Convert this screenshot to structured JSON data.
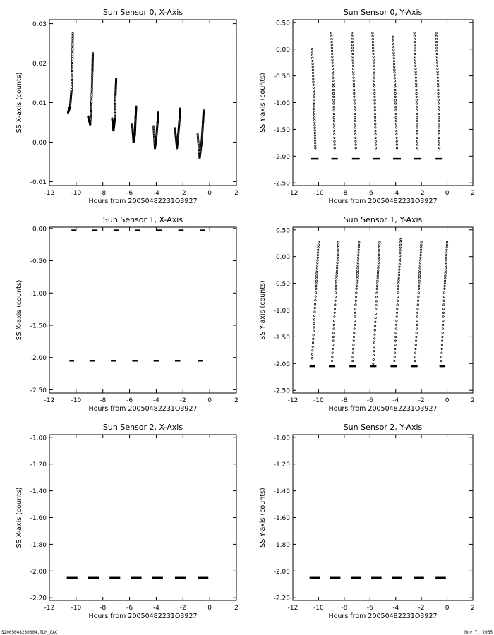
{
  "footer": {
    "left": "S2005048230304.TLM_GAC",
    "right": "Nov 7, 2005"
  },
  "chart_data": [
    {
      "type": "scatter",
      "title": "Sun Sensor 0, X-Axis",
      "xlabel": "Hours from 20050482231O3927",
      "ylabel": "SS X-axis (counts)",
      "xlim": [
        -12,
        2
      ],
      "ylim": [
        -0.011,
        0.031
      ],
      "xticks": [
        -12,
        -10,
        -8,
        -6,
        -4,
        -2,
        0,
        2
      ],
      "xtick_labels": [
        "-12",
        "-10",
        "-8",
        "-6",
        "-4",
        "-2",
        "0",
        "2"
      ],
      "yticks": [
        -0.01,
        0.0,
        0.01,
        0.02,
        0.03
      ],
      "ytick_labels": [
        "-0.01",
        "0.00",
        "0.01",
        "0.02",
        "0.03"
      ],
      "segments": [
        {
          "x": [
            -10.6,
            -10.45,
            -10.35,
            -10.28,
            -10.25
          ],
          "y": [
            0.0075,
            0.009,
            0.013,
            0.02,
            0.0275
          ]
        },
        {
          "x": [
            -9.1,
            -8.95,
            -8.85,
            -8.78,
            -8.75
          ],
          "y": [
            0.0065,
            0.0045,
            0.01,
            0.018,
            0.0225
          ]
        },
        {
          "x": [
            -7.3,
            -7.2,
            -7.1,
            -7.05,
            -7.0
          ],
          "y": [
            0.006,
            0.003,
            0.006,
            0.012,
            0.016
          ]
        },
        {
          "x": [
            -5.8,
            -5.7,
            -5.6,
            -5.55,
            -5.5
          ],
          "y": [
            0.0045,
            0.0,
            0.002,
            0.006,
            0.009
          ]
        },
        {
          "x": [
            -4.2,
            -4.1,
            -4.0,
            -3.9,
            -3.85
          ],
          "y": [
            0.004,
            -0.0015,
            0.001,
            0.005,
            0.0075
          ]
        },
        {
          "x": [
            -2.6,
            -2.45,
            -2.35,
            -2.25,
            -2.2
          ],
          "y": [
            0.0035,
            -0.0015,
            0.002,
            0.006,
            0.0085
          ]
        },
        {
          "x": [
            -0.9,
            -0.75,
            -0.6,
            -0.5,
            -0.45
          ],
          "y": [
            0.002,
            -0.004,
            0.0,
            0.005,
            0.008
          ]
        }
      ],
      "flat": null
    },
    {
      "type": "scatter",
      "title": "Sun Sensor 0, Y-Axis",
      "xlabel": "Hours from 20050482231O3927",
      "ylabel": "SS Y-axis (counts)",
      "xlim": [
        -12,
        2
      ],
      "ylim": [
        -2.55,
        0.55
      ],
      "xticks": [
        -12,
        -10,
        -8,
        -6,
        -4,
        -2,
        0,
        2
      ],
      "xtick_labels": [
        "-12",
        "-10",
        "-8",
        "-6",
        "-4",
        "-2",
        "0",
        "2"
      ],
      "yticks": [
        -2.5,
        -2.0,
        -1.5,
        -1.0,
        -0.5,
        0.0,
        0.5
      ],
      "ytick_labels": [
        "-2.50",
        "-2.00",
        "-1.50",
        "-1.00",
        "-0.50",
        "0.00",
        "0.50"
      ],
      "segments": [
        {
          "x": [
            -10.5,
            -10.35,
            -10.25
          ],
          "y": [
            0.0,
            -1.0,
            -1.85
          ]
        },
        {
          "x": [
            -9.0,
            -8.85,
            -8.75
          ],
          "y": [
            0.3,
            -0.7,
            -1.85
          ]
        },
        {
          "x": [
            -7.4,
            -7.25,
            -7.1
          ],
          "y": [
            0.3,
            -0.7,
            -1.85
          ]
        },
        {
          "x": [
            -5.8,
            -5.65,
            -5.55
          ],
          "y": [
            0.3,
            -0.7,
            -1.85
          ]
        },
        {
          "x": [
            -4.2,
            -4.05,
            -3.9
          ],
          "y": [
            0.25,
            -0.7,
            -1.85
          ]
        },
        {
          "x": [
            -2.55,
            -2.4,
            -2.3
          ],
          "y": [
            0.3,
            -0.7,
            -1.85
          ]
        },
        {
          "x": [
            -0.85,
            -0.7,
            -0.6
          ],
          "y": [
            0.3,
            -0.7,
            -1.85
          ]
        }
      ],
      "flat": {
        "y": -2.05,
        "ranges": [
          [
            -10.6,
            -10.0
          ],
          [
            -9.0,
            -8.5
          ],
          [
            -7.4,
            -6.8
          ],
          [
            -5.8,
            -5.2
          ],
          [
            -4.2,
            -3.6
          ],
          [
            -2.6,
            -2.0
          ],
          [
            -0.9,
            -0.35
          ]
        ]
      }
    },
    {
      "type": "scatter",
      "title": "Sun Sensor 1, X-Axis",
      "xlabel": "Hours from 20050482231O3927",
      "ylabel": "SS X-axis (counts)",
      "xlim": [
        -12,
        2
      ],
      "ylim": [
        -2.55,
        0.02
      ],
      "xticks": [
        -12,
        -10,
        -8,
        -6,
        -4,
        -2,
        0,
        2
      ],
      "xtick_labels": [
        "-12",
        "-10",
        "-8",
        "-6",
        "-4",
        "-2",
        "0",
        "2"
      ],
      "yticks": [
        -2.5,
        -2.0,
        -1.5,
        -1.0,
        -0.5,
        0.0
      ],
      "ytick_labels": [
        "-2.50",
        "-2.00",
        "-1.50",
        "-1.00",
        "-0.50",
        "0.00"
      ],
      "segments": [],
      "flat_top": {
        "y": -0.03,
        "ranges": [
          [
            -10.35,
            -10.0
          ],
          [
            -8.8,
            -8.4
          ],
          [
            -7.2,
            -6.8
          ],
          [
            -5.6,
            -5.2
          ],
          [
            -4.0,
            -3.6
          ],
          [
            -2.35,
            -1.95
          ],
          [
            -0.75,
            -0.35
          ]
        ]
      },
      "flat": {
        "y": -2.05,
        "ranges": [
          [
            -10.5,
            -10.15
          ],
          [
            -9.0,
            -8.6
          ],
          [
            -7.4,
            -7.0
          ],
          [
            -5.8,
            -5.4
          ],
          [
            -4.2,
            -3.8
          ],
          [
            -2.6,
            -2.2
          ],
          [
            -0.9,
            -0.5
          ]
        ]
      }
    },
    {
      "type": "scatter",
      "title": "Sun Sensor 1, Y-Axis",
      "xlabel": "Hours from 20050482231O3927",
      "ylabel": "SS Y-axis (counts)",
      "xlim": [
        -12,
        2
      ],
      "ylim": [
        -2.55,
        0.55
      ],
      "xticks": [
        -12,
        -10,
        -8,
        -6,
        -4,
        -2,
        0,
        2
      ],
      "xtick_labels": [
        "-12",
        "-10",
        "-8",
        "-6",
        "-4",
        "-2",
        "0",
        "2"
      ],
      "yticks": [
        -2.5,
        -2.0,
        -1.5,
        -1.0,
        -0.5,
        0.0,
        0.5
      ],
      "ytick_labels": [
        "-2.50",
        "-2.00",
        "-1.50",
        "-1.00",
        "-0.50",
        "0.00",
        "0.50"
      ],
      "segments": [
        {
          "x": [
            -10.5,
            -10.2,
            -10.0
          ],
          "y": [
            -1.9,
            -0.6,
            0.27
          ]
        },
        {
          "x": [
            -8.95,
            -8.65,
            -8.45
          ],
          "y": [
            -1.95,
            -0.6,
            0.27
          ]
        },
        {
          "x": [
            -7.35,
            -7.05,
            -6.85
          ],
          "y": [
            -1.95,
            -0.6,
            0.27
          ]
        },
        {
          "x": [
            -5.75,
            -5.45,
            -5.25
          ],
          "y": [
            -2.0,
            -0.6,
            0.27
          ]
        },
        {
          "x": [
            -4.1,
            -3.8,
            -3.6
          ],
          "y": [
            -1.95,
            -0.6,
            0.32
          ]
        },
        {
          "x": [
            -2.5,
            -2.2,
            -2.0
          ],
          "y": [
            -1.95,
            -0.6,
            0.27
          ]
        },
        {
          "x": [
            -0.45,
            -0.2,
            0.0
          ],
          "y": [
            -1.95,
            -0.6,
            0.27
          ]
        }
      ],
      "flat": {
        "y": -2.05,
        "ranges": [
          [
            -10.7,
            -10.25
          ],
          [
            -9.2,
            -8.7
          ],
          [
            -7.6,
            -7.1
          ],
          [
            -6.0,
            -5.5
          ],
          [
            -4.4,
            -3.9
          ],
          [
            -2.8,
            -2.3
          ],
          [
            -0.6,
            -0.15
          ]
        ]
      }
    },
    {
      "type": "scatter",
      "title": "Sun Sensor 2, X-Axis",
      "xlabel": "Hours from 20050482231O3927",
      "ylabel": "SS X-axis (counts)",
      "xlim": [
        -12,
        2
      ],
      "ylim": [
        -2.22,
        -0.98
      ],
      "xticks": [
        -12,
        -10,
        -8,
        -6,
        -4,
        -2,
        0,
        2
      ],
      "xtick_labels": [
        "-12",
        "-10",
        "-8",
        "-6",
        "-4",
        "-2",
        "0",
        "2"
      ],
      "yticks": [
        -2.2,
        -2.0,
        -1.8,
        -1.6,
        -1.4,
        -1.2,
        -1.0
      ],
      "ytick_labels": [
        "-2.20",
        "-2.00",
        "-1.80",
        "-1.60",
        "-1.40",
        "-1.20",
        "-1.00"
      ],
      "segments": [],
      "flat": {
        "y": -2.05,
        "ranges": [
          [
            -10.7,
            -9.9
          ],
          [
            -9.1,
            -8.3
          ],
          [
            -7.5,
            -6.7
          ],
          [
            -5.9,
            -5.1
          ],
          [
            -4.3,
            -3.5
          ],
          [
            -2.6,
            -1.8
          ],
          [
            -0.9,
            -0.1
          ]
        ]
      }
    },
    {
      "type": "scatter",
      "title": "Sun Sensor 2, Y-Axis",
      "xlabel": "Hours from 20050482231O3927",
      "ylabel": "SS Y-axis (counts)",
      "xlim": [
        -12,
        2
      ],
      "ylim": [
        -2.22,
        -0.98
      ],
      "xticks": [
        -12,
        -10,
        -8,
        -6,
        -4,
        -2,
        0,
        2
      ],
      "xtick_labels": [
        "-12",
        "-10",
        "-8",
        "-6",
        "-4",
        "-2",
        "0",
        "2"
      ],
      "yticks": [
        -2.2,
        -2.0,
        -1.8,
        -1.6,
        -1.4,
        -1.2,
        -1.0
      ],
      "ytick_labels": [
        "-2.20",
        "-2.00",
        "-1.80",
        "-1.60",
        "-1.40",
        "-1.20",
        "-1.00"
      ],
      "segments": [],
      "flat": {
        "y": -2.05,
        "ranges": [
          [
            -10.7,
            -9.9
          ],
          [
            -9.1,
            -8.3
          ],
          [
            -7.5,
            -6.7
          ],
          [
            -5.9,
            -5.1
          ],
          [
            -4.3,
            -3.5
          ],
          [
            -2.6,
            -1.8
          ],
          [
            -0.9,
            -0.1
          ]
        ]
      }
    }
  ]
}
